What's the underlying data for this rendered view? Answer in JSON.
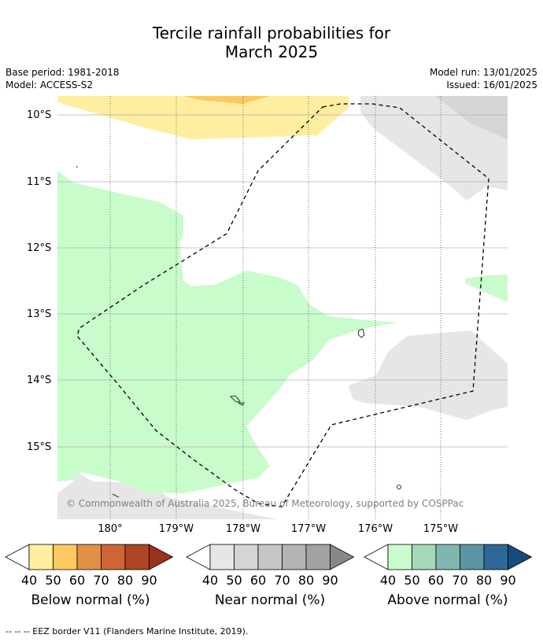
{
  "title_line1": "Tercile rainfall probabilities for",
  "title_line2": "March 2025",
  "meta_left": [
    "Base period: 1981-2018",
    "Model: ACCESS-S2"
  ],
  "meta_right": [
    "Model run: 13/01/2025",
    "Issued: 16/01/2025"
  ],
  "lat_labels": [
    "10°S",
    "11°S",
    "12°S",
    "13°S",
    "14°S",
    "15°S"
  ],
  "lon_labels": [
    "180°",
    "179°W",
    "178°W",
    "177°W",
    "176°W",
    "175°W"
  ],
  "copyright": "© Commonwealth of Australia 2025, Bureau of Meteorology, supported by COSPPac",
  "legends": [
    {
      "title": "Below normal (%)",
      "ticks": [
        "40",
        "50",
        "60",
        "70",
        "80",
        "90"
      ],
      "colors": [
        "#ffeea0",
        "#fdc862",
        "#e09145",
        "#cd6535",
        "#ac4626",
        "#9b3220"
      ]
    },
    {
      "title": "Near normal (%)",
      "ticks": [
        "40",
        "50",
        "60",
        "70",
        "80",
        "90"
      ],
      "colors": [
        "#e6e6e6",
        "#d5d5d5",
        "#c6c6c6",
        "#b4b4b4",
        "#a2a2a2",
        "#888888"
      ]
    },
    {
      "title": "Above normal (%)",
      "ticks": [
        "40",
        "50",
        "60",
        "70",
        "80",
        "90"
      ],
      "colors": [
        "#c8fccb",
        "#a6d8b8",
        "#7fb6b1",
        "#5b95a3",
        "#2f6798",
        "#184a7e"
      ]
    }
  ],
  "footnote": "--  --  -- EEZ border V11 (Flanders Marine Institute, 2019)."
}
